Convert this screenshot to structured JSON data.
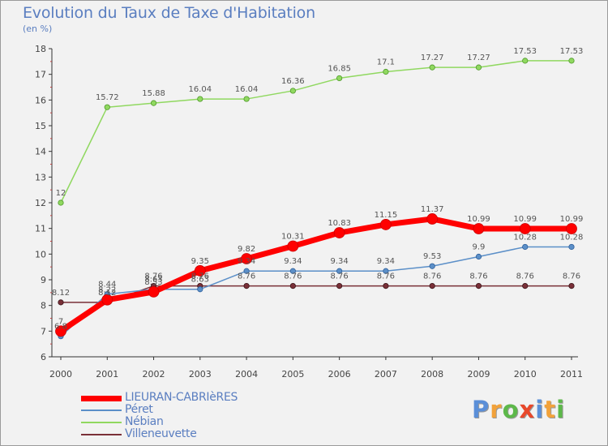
{
  "title": "Evolution du Taux de Taxe d'Habitation",
  "subtitle": "(en %)",
  "logo": {
    "letters": [
      {
        "ch": "P",
        "color": "#5b8fd8"
      },
      {
        "ch": "r",
        "color": "#f2a23a"
      },
      {
        "ch": "o",
        "color": "#5db84a"
      },
      {
        "ch": "x",
        "color": "#e8482b"
      },
      {
        "ch": "i",
        "color": "#5b8fd8"
      },
      {
        "ch": "t",
        "color": "#f2a23a"
      },
      {
        "ch": "i",
        "color": "#5db84a"
      }
    ]
  },
  "chart_data": {
    "type": "line",
    "title": "Evolution du Taux de Taxe d'Habitation",
    "subtitle": "(en %)",
    "xlabel": "",
    "ylabel": "",
    "x": [
      "2000",
      "2001",
      "2002",
      "2003",
      "2004",
      "2005",
      "2006",
      "2007",
      "2008",
      "2009",
      "2010",
      "2011"
    ],
    "ylim": [
      6,
      18
    ],
    "yticks": [
      "6",
      "7",
      "8",
      "9",
      "10",
      "11",
      "12",
      "13",
      "14",
      "15",
      "16",
      "17",
      "18"
    ],
    "grid": false,
    "legend_placement": "bottom-left",
    "series": [
      {
        "name": "LIEURAN-CABRIèRES",
        "color": "#ff0000",
        "values": [
          7,
          8.22,
          8.53,
          9.35,
          9.82,
          10.31,
          10.83,
          11.15,
          11.37,
          10.99,
          10.99,
          10.99
        ],
        "labels": [
          "7",
          "8.22",
          "8.53",
          "9.35",
          "9.82",
          "10.31",
          "10.83",
          "11.15",
          "11.37",
          "10.99",
          "10.99",
          "10.99"
        ]
      },
      {
        "name": "Péret",
        "color": "#5b8fc8",
        "values": [
          6.8,
          8.44,
          8.63,
          8.63,
          9.34,
          9.34,
          9.34,
          9.34,
          9.53,
          9.9,
          10.28,
          10.28
        ],
        "labels": [
          "6.8",
          "8.44",
          "8.63",
          "8.63",
          "9.34",
          "9.34",
          "9.34",
          "9.34",
          "9.53",
          "9.9",
          "10.28",
          "10.28"
        ]
      },
      {
        "name": "Nébian",
        "color": "#90d860",
        "values": [
          12,
          15.72,
          15.88,
          16.04,
          16.04,
          16.36,
          16.85,
          17.1,
          17.27,
          17.27,
          17.53,
          17.53
        ],
        "labels": [
          "12",
          "15.72",
          "15.88",
          "16.04",
          "16.04",
          "16.36",
          "16.85",
          "17.1",
          "17.27",
          "17.27",
          "17.53",
          "17.53"
        ]
      },
      {
        "name": "Villeneuvette",
        "color": "#7a3038",
        "values": [
          8.12,
          8.12,
          8.76,
          8.76,
          8.76,
          8.76,
          8.76,
          8.76,
          8.76,
          8.76,
          8.76,
          8.76
        ],
        "labels": [
          "8.12",
          "8.12",
          "8.76",
          "8.76",
          "8.76",
          "8.76",
          "8.76",
          "8.76",
          "8.76",
          "8.76",
          "8.76",
          "8.76"
        ]
      }
    ]
  }
}
